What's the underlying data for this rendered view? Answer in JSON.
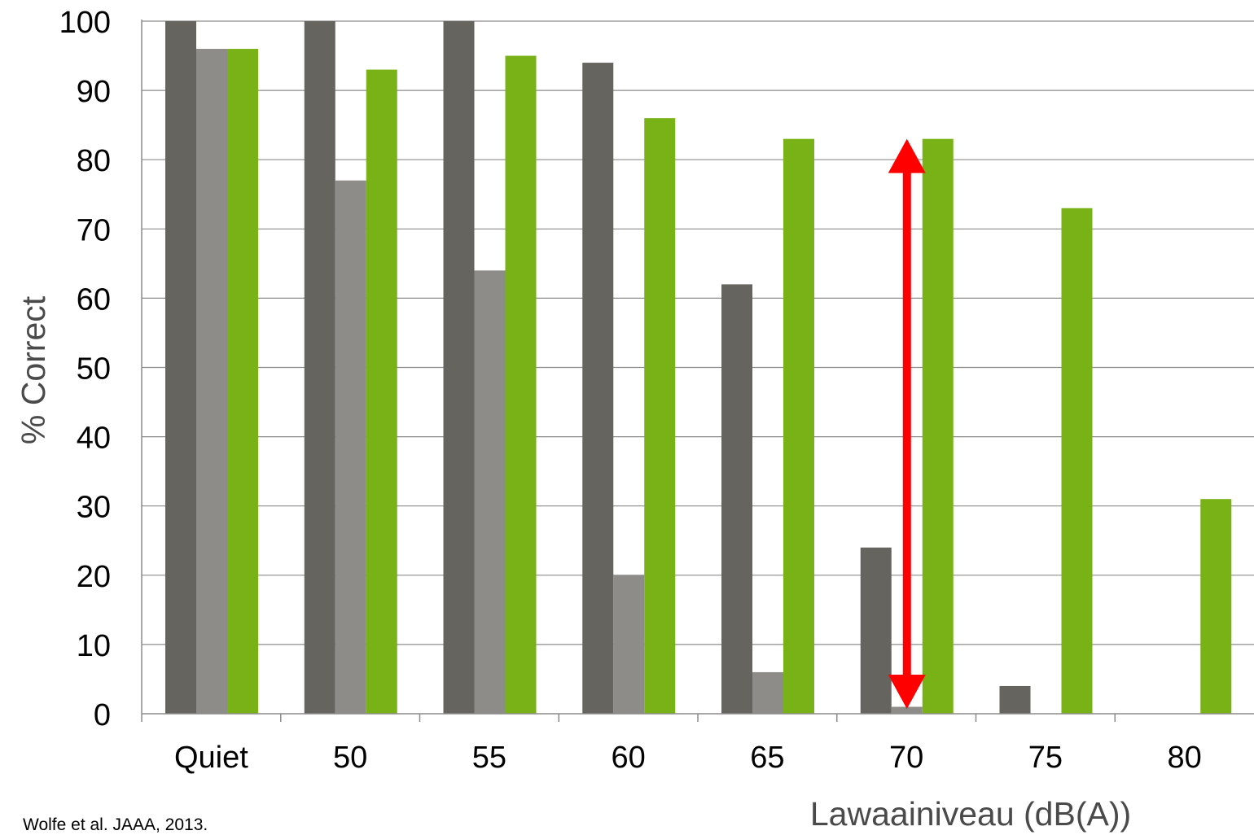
{
  "chart_data": {
    "type": "bar",
    "categories": [
      "Quiet",
      "50",
      "55",
      "60",
      "65",
      "70",
      "75",
      "80"
    ],
    "series": [
      {
        "values": [
          100,
          100,
          100,
          94,
          62,
          24,
          4,
          0
        ]
      },
      {
        "values": [
          96,
          77,
          64,
          20,
          6,
          1,
          0,
          0
        ]
      },
      {
        "values": [
          96,
          93,
          95,
          86,
          83,
          83,
          73,
          31
        ]
      }
    ],
    "colors": [
      "#65645f",
      "#8d8c88",
      "#78b216"
    ],
    "title": "",
    "xlabel": "Lawaainiveau (dB(A))",
    "ylabel": "% Correct",
    "ylim": [
      0,
      100
    ],
    "yticks": [
      0,
      10,
      20,
      30,
      40,
      50,
      60,
      70,
      80,
      90,
      100
    ],
    "grid": true,
    "legend": "none",
    "annotation": {
      "type": "double-arrow",
      "category": "70",
      "from": 0,
      "to": 83,
      "color": "#ff0000"
    }
  },
  "source": "Wolfe et al. JAAA, 2013."
}
